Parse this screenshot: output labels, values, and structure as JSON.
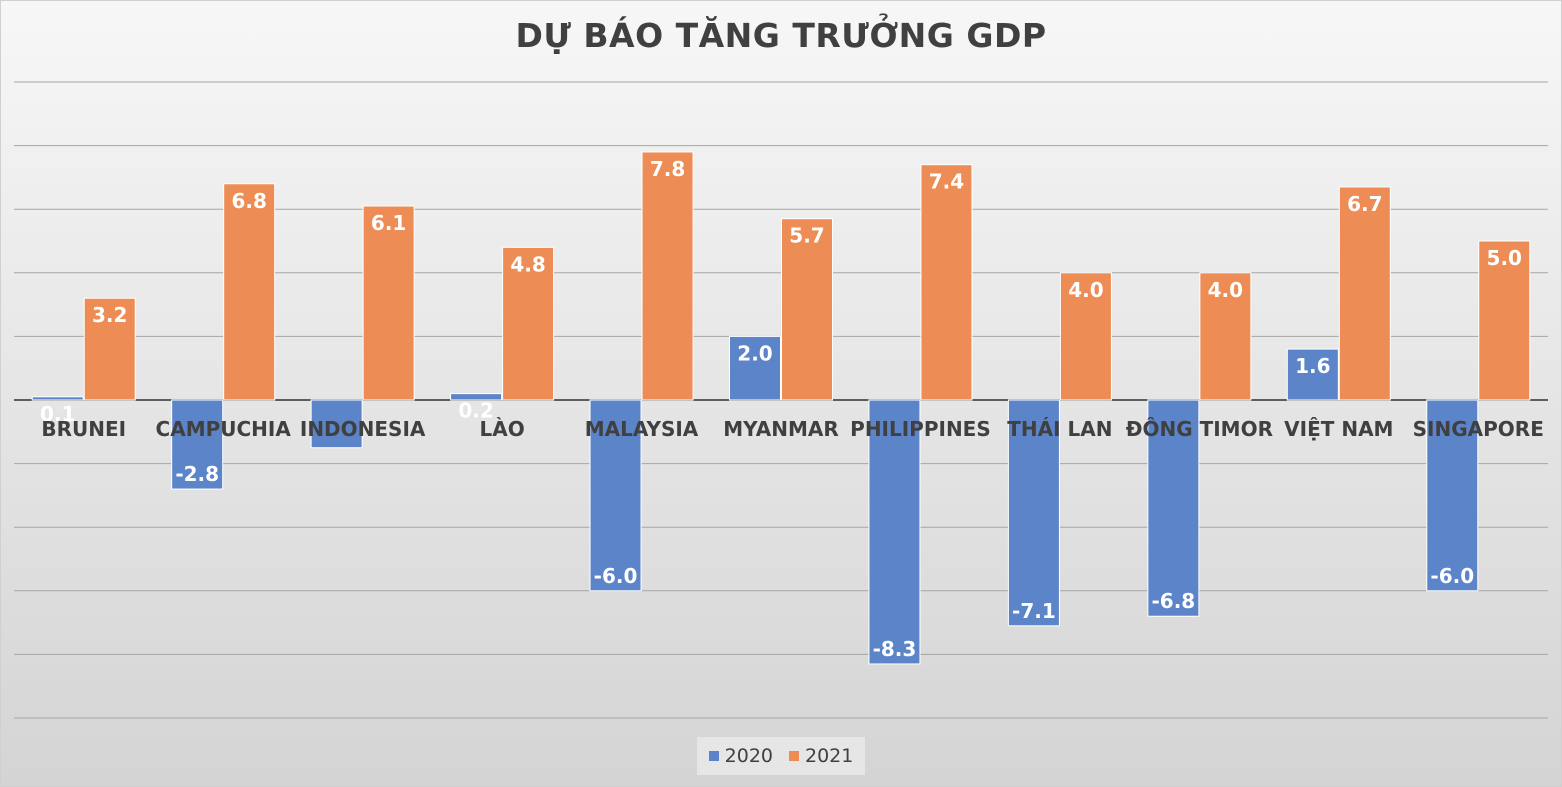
{
  "chart_data": {
    "type": "bar",
    "title": "DỰ BÁO TĂNG TRƯỞNG GDP",
    "categories": [
      "BRUNEI",
      "CAMPUCHIA",
      "INDONESIA",
      "LÀO",
      "MALAYSIA",
      "MYANMAR",
      "PHILIPPINES",
      "THÁI LAN",
      "ĐÔNG TIMOR",
      "VIỆT NAM",
      "SINGAPORE"
    ],
    "series": [
      {
        "name": "2020",
        "color": "#5b84c9",
        "values": [
          0.1,
          -2.8,
          -1.5,
          0.2,
          -6.0,
          2.0,
          -8.3,
          -7.1,
          -6.8,
          1.6,
          -6.0
        ],
        "labels": [
          "0.1",
          "-2.8",
          "",
          "0.2",
          "-6.0",
          "2.0",
          "-8.3",
          "-7.1",
          "-6.8",
          "1.6",
          "-6.0"
        ]
      },
      {
        "name": "2021",
        "color": "#ed8d55",
        "values": [
          3.2,
          6.8,
          6.1,
          4.8,
          7.8,
          5.7,
          7.4,
          4.0,
          4.0,
          6.7,
          5.0
        ],
        "labels": [
          "3.2",
          "6.8",
          "6.1",
          "4.8",
          "7.8",
          "5.7",
          "7.4",
          "4.0",
          "4.0",
          "6.7",
          "5.0"
        ]
      }
    ],
    "ylim": [
      -10,
      10
    ],
    "grid": true,
    "legend": "bottom"
  }
}
